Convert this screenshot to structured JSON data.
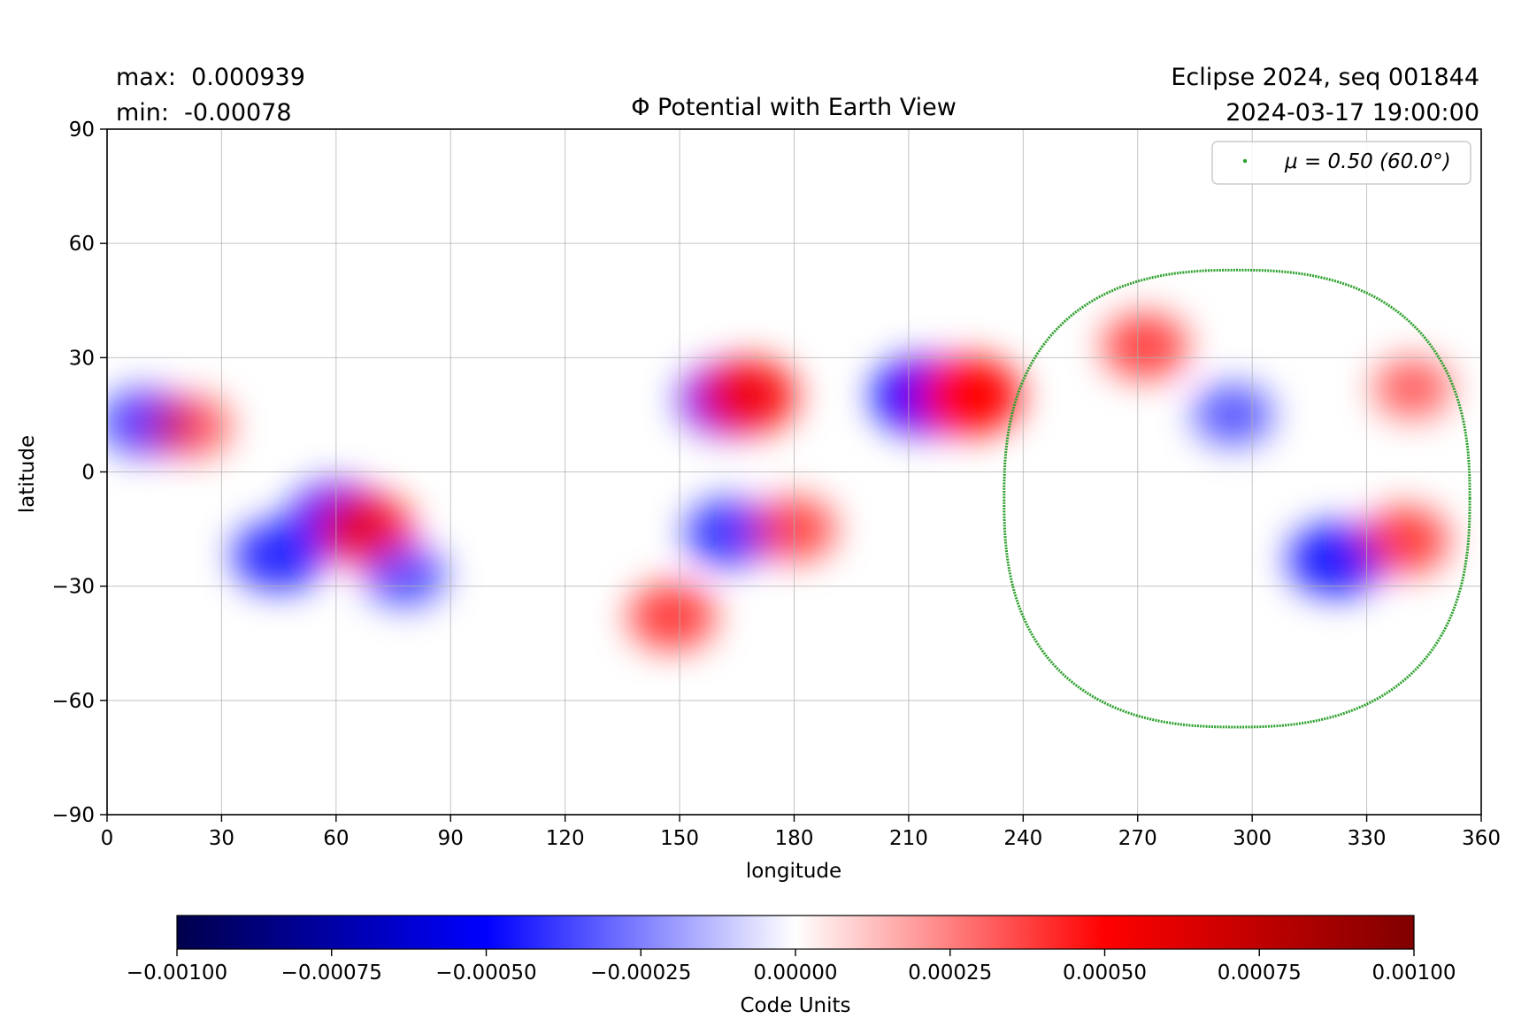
{
  "header": {
    "max_label": "max:  0.000939",
    "min_label": "min:  -0.00078",
    "title": "Φ Potential with Earth View",
    "source_label": "Eclipse 2024, seq 001844",
    "datetime_label": "2024-03-17 19:00:00"
  },
  "chart_data": {
    "type": "heatmap",
    "title": "Φ Potential with Earth View",
    "xlabel": "longitude",
    "ylabel": "latitude",
    "xlim": [
      0,
      360
    ],
    "ylim": [
      -90,
      90
    ],
    "grid": true,
    "x_ticks": [
      0,
      30,
      60,
      90,
      120,
      150,
      180,
      210,
      240,
      270,
      300,
      330,
      360
    ],
    "y_ticks": [
      90,
      60,
      30,
      0,
      -30,
      -60,
      -90
    ],
    "y_tick_labels": [
      "90",
      "60",
      "30",
      "0",
      "−30",
      "−60",
      "−90"
    ],
    "max_value": 0.000939,
    "min_value": -0.00078,
    "colormap": "seismic",
    "legend": {
      "placement": "upper right",
      "entries": [
        {
          "label": "μ = 0.50 (60.0°)",
          "color": "#2ca02c",
          "marker": "dot"
        }
      ]
    },
    "mu_contour": {
      "mu": 0.5,
      "angle_deg": 60.0,
      "center_lon": 296,
      "center_lat": -13,
      "lon_half_width": 61,
      "lat_top": 53,
      "lat_bottom": -67,
      "color": "#2ca02c"
    },
    "features": [
      {
        "lon": 10,
        "lat": 13,
        "sign": "negative",
        "strength": 0.55
      },
      {
        "lon": 22,
        "lat": 12,
        "sign": "positive",
        "strength": 0.35
      },
      {
        "lon": 45,
        "lat": -22,
        "sign": "negative",
        "strength": 0.7
      },
      {
        "lon": 60,
        "lat": -12,
        "sign": "negative",
        "strength": 0.75
      },
      {
        "lon": 68,
        "lat": -15,
        "sign": "positive",
        "strength": 0.75
      },
      {
        "lon": 78,
        "lat": -27,
        "sign": "negative",
        "strength": 0.4
      },
      {
        "lon": 162,
        "lat": 19,
        "sign": "negative",
        "strength": 0.75
      },
      {
        "lon": 168,
        "lat": 20,
        "sign": "positive",
        "strength": 0.85
      },
      {
        "lon": 163,
        "lat": -16,
        "sign": "negative",
        "strength": 0.6
      },
      {
        "lon": 148,
        "lat": -38,
        "sign": "positive",
        "strength": 0.55
      },
      {
        "lon": 180,
        "lat": -15,
        "sign": "positive",
        "strength": 0.45
      },
      {
        "lon": 214,
        "lat": 20,
        "sign": "negative",
        "strength": 1.0
      },
      {
        "lon": 226,
        "lat": 20,
        "sign": "positive",
        "strength": 1.0
      },
      {
        "lon": 272,
        "lat": 33,
        "sign": "positive",
        "strength": 0.5
      },
      {
        "lon": 322,
        "lat": -23,
        "sign": "negative",
        "strength": 0.8
      },
      {
        "lon": 340,
        "lat": -18,
        "sign": "positive",
        "strength": 0.55
      },
      {
        "lon": 342,
        "lat": 22,
        "sign": "positive",
        "strength": 0.3
      },
      {
        "lon": 295,
        "lat": 15,
        "sign": "negative",
        "strength": 0.35
      }
    ],
    "colorbar": {
      "label": "Code Units",
      "range": [
        -0.001,
        0.001
      ],
      "ticks": [
        -0.001,
        -0.00075,
        -0.0005,
        -0.00025,
        0,
        0.00025,
        0.0005,
        0.00075,
        0.001
      ],
      "tick_labels": [
        "−0.00100",
        "−0.00075",
        "−0.00050",
        "−0.00025",
        "0.00000",
        "0.00025",
        "0.00050",
        "0.00075",
        "0.00100"
      ]
    }
  }
}
